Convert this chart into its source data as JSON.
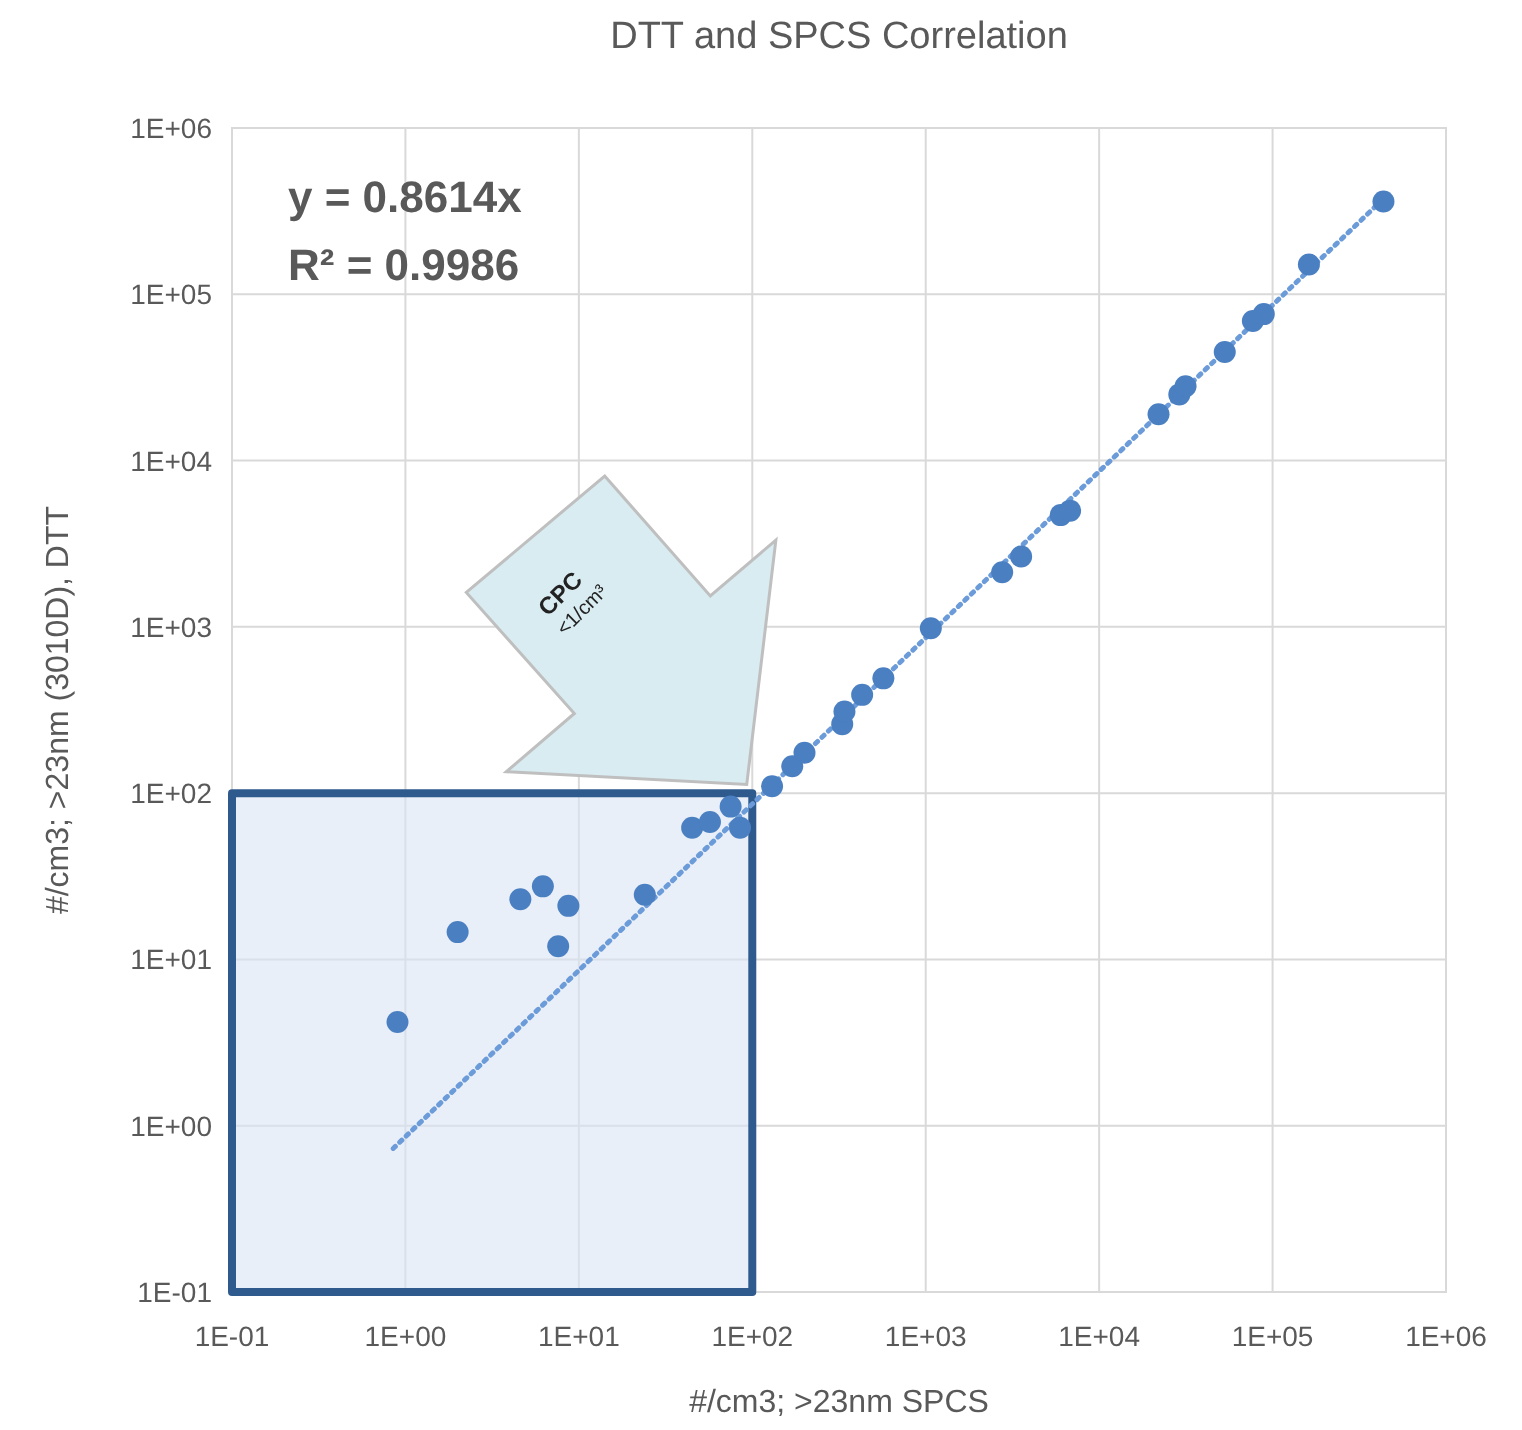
{
  "chart_data": {
    "type": "scatter",
    "title": "DTT and SPCS Correlation",
    "xlabel": "#/cm3; >23nm SPCS",
    "ylabel": "#/cm3; >23nm (3010D),  DTT",
    "log": "xy",
    "grid": true,
    "marker": "circle",
    "line_style": "dotted",
    "xlim": [
      0.1,
      1000000
    ],
    "ylim": [
      0.1,
      1000000
    ],
    "xticks": [
      {
        "value": 0.1,
        "label": "1E-01"
      },
      {
        "value": 1,
        "label": "1E+00"
      },
      {
        "value": 10,
        "label": "1E+01"
      },
      {
        "value": 100,
        "label": "1E+02"
      },
      {
        "value": 1000,
        "label": "1E+03"
      },
      {
        "value": 10000,
        "label": "1E+04"
      },
      {
        "value": 100000,
        "label": "1E+05"
      },
      {
        "value": 1000000,
        "label": "1E+06"
      }
    ],
    "yticks": [
      {
        "value": 0.1,
        "label": "1E-01"
      },
      {
        "value": 1,
        "label": "1E+00"
      },
      {
        "value": 10,
        "label": "1E+01"
      },
      {
        "value": 100,
        "label": "1E+02"
      },
      {
        "value": 1000,
        "label": "1E+03"
      },
      {
        "value": 10000,
        "label": "1E+04"
      },
      {
        "value": 100000,
        "label": "1E+05"
      },
      {
        "value": 1000000,
        "label": "1E+06"
      }
    ],
    "annotations": [
      "y = 0.8614x",
      "R² = 0.9986",
      "CPC",
      "<1/cm³"
    ],
    "series": [
      {
        "type": "area",
        "marker": "none",
        "color": "#dbe4f3",
        "x": [
          0.1,
          100
        ],
        "values": [
          100,
          100
        ]
      },
      {
        "type": "line",
        "marker": "none",
        "color": "#6b9bd8",
        "x": [
          0.85,
          436000
        ],
        "values": [
          0.73,
          375600
        ]
      },
      {
        "color": "#4a7fc1",
        "x": [
          0.9,
          2.0,
          4.6,
          6.2,
          7.6,
          8.7,
          24,
          45,
          57,
          75,
          85,
          130,
          170,
          200,
          330,
          340,
          430,
          570,
          1070,
          2760,
          3550,
          6000,
          6800,
          22000,
          29000,
          31500,
          53000,
          77000,
          89000,
          162000,
          436000
        ],
        "values": [
          4.2,
          14.6,
          23,
          27.5,
          12,
          21,
          24.5,
          62,
          67,
          83,
          62,
          110,
          145,
          175,
          260,
          310,
          390,
          490,
          980,
          2130,
          2650,
          4700,
          5000,
          19000,
          25000,
          28000,
          45000,
          69000,
          76000,
          151000,
          361000
        ]
      }
    ]
  }
}
